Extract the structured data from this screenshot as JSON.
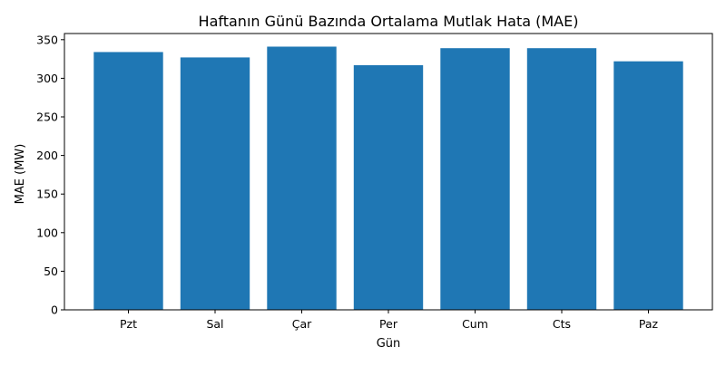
{
  "chart_data": {
    "type": "bar",
    "title": "Haftanın Günü Bazında Ortalama Mutlak Hata (MAE)",
    "xlabel": "Gün",
    "ylabel": "MAE (MW)",
    "categories": [
      "Pzt",
      "Sal",
      "Çar",
      "Per",
      "Cum",
      "Cts",
      "Paz"
    ],
    "values": [
      334,
      327,
      341,
      317,
      339,
      339,
      322
    ],
    "ylim": [
      0,
      358
    ],
    "yticks": [
      0,
      50,
      100,
      150,
      200,
      250,
      300,
      350
    ],
    "grid": false,
    "legend": "none",
    "bar_color": "#1f77b4"
  }
}
